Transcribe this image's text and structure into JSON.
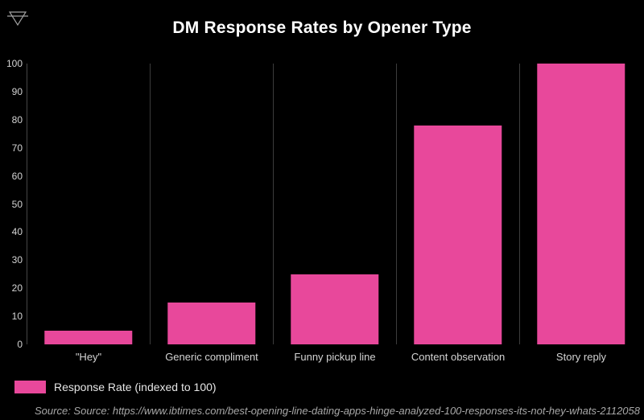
{
  "header": {
    "corner_icon": "funnel-triangle-glyph"
  },
  "chart_data": {
    "type": "bar",
    "title": "DM Response Rates by Opener Type",
    "categories": [
      "\"Hey\"",
      "Generic compliment",
      "Funny pickup line",
      "Content observation",
      "Story reply"
    ],
    "values": [
      5,
      15,
      25,
      78,
      100
    ],
    "series_name": "Response Rate (indexed to 100)",
    "xlabel": "",
    "ylabel": "",
    "ylim": [
      0,
      100
    ],
    "yticks": [
      0,
      10,
      20,
      30,
      40,
      50,
      60,
      70,
      80,
      90,
      100
    ],
    "grid": "vertical-category-separators-only",
    "legend_position": "bottom-left",
    "bar_color": "#e8489b"
  },
  "legend": {
    "label": "Response Rate (indexed to 100)",
    "swatch_color": "#e8489b"
  },
  "source": {
    "text": "Source: Source: https://www.ibtimes.com/best-opening-line-dating-apps-hinge-analyzed-100-responses-its-not-hey-whats-2112058"
  },
  "colors": {
    "background": "#000000",
    "bar": "#e8489b",
    "title_text": "#ffffff",
    "axis_text": "#d4d4d4",
    "separator_line": "#3c3c3c",
    "axis_line": "#474747",
    "source_text": "#a8a8a8",
    "icon_stroke": "#a0a0a0"
  }
}
